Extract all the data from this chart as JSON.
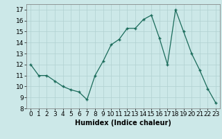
{
  "x": [
    0,
    1,
    2,
    3,
    4,
    5,
    6,
    7,
    8,
    9,
    10,
    11,
    12,
    13,
    14,
    15,
    16,
    17,
    18,
    19,
    20,
    21,
    22,
    23
  ],
  "y": [
    12,
    11,
    11,
    10.5,
    10,
    9.7,
    9.5,
    8.8,
    11,
    12.3,
    13.8,
    14.3,
    15.3,
    15.3,
    16.1,
    16.5,
    14.4,
    12,
    17,
    15,
    13,
    11.5,
    9.8,
    8.5
  ],
  "line_color": "#1a6b5a",
  "marker_color": "#1a6b5a",
  "bg_color": "#cce8e8",
  "grid_color": "#b0d0d0",
  "xlabel": "Humidex (Indice chaleur)",
  "xlim": [
    -0.5,
    23.5
  ],
  "ylim": [
    8,
    17.5
  ],
  "yticks": [
    8,
    9,
    10,
    11,
    12,
    13,
    14,
    15,
    16,
    17
  ],
  "xtick_labels": [
    "0",
    "1",
    "2",
    "3",
    "4",
    "5",
    "6",
    "7",
    "8",
    "9",
    "10",
    "11",
    "12",
    "13",
    "14",
    "15",
    "16",
    "17",
    "18",
    "19",
    "20",
    "21",
    "22",
    "23"
  ],
  "label_fontsize": 7,
  "tick_fontsize": 6.5
}
